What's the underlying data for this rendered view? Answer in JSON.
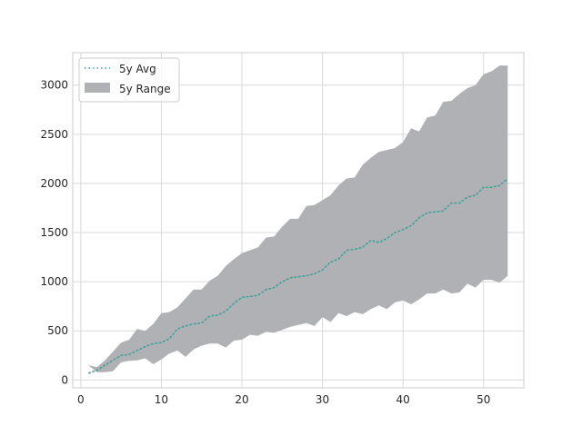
{
  "chart_data": {
    "type": "area",
    "x_ticks": [
      0,
      10,
      20,
      30,
      40,
      50
    ],
    "y_ticks": [
      0,
      500,
      1000,
      1500,
      2000,
      2500,
      3000
    ],
    "xlim": [
      -1,
      55
    ],
    "ylim": [
      -80,
      3330
    ],
    "grid": true,
    "legend_position": "top-left",
    "colors": {
      "range_fill": "#b0b1b4",
      "avg_line": "#3aa39a",
      "grid": "#d9d9d9",
      "axes": "#cccccc"
    },
    "x": [
      1,
      2,
      3,
      4,
      5,
      6,
      7,
      8,
      9,
      10,
      11,
      12,
      13,
      14,
      15,
      16,
      17,
      18,
      19,
      20,
      21,
      22,
      23,
      24,
      25,
      26,
      27,
      28,
      29,
      30,
      31,
      32,
      33,
      34,
      35,
      36,
      37,
      38,
      39,
      40,
      41,
      42,
      43,
      44,
      45,
      46,
      47,
      48,
      49,
      50,
      51,
      52,
      53
    ],
    "series": [
      {
        "name": "5y Avg",
        "kind": "line",
        "values": [
          70,
          100,
          150,
          200,
          250,
          260,
          300,
          340,
          370,
          380,
          420,
          520,
          550,
          570,
          580,
          650,
          660,
          700,
          780,
          840,
          850,
          860,
          920,
          940,
          1000,
          1040,
          1050,
          1060,
          1080,
          1120,
          1200,
          1230,
          1320,
          1330,
          1350,
          1420,
          1400,
          1440,
          1500,
          1530,
          1570,
          1650,
          1700,
          1710,
          1720,
          1800,
          1800,
          1860,
          1880,
          1960,
          1960,
          1980,
          2050
        ]
      },
      {
        "name": "5y Range",
        "kind": "band",
        "lower": [
          145,
          80,
          80,
          90,
          180,
          195,
          200,
          220,
          160,
          210,
          270,
          300,
          235,
          310,
          350,
          370,
          370,
          330,
          400,
          410,
          460,
          450,
          490,
          480,
          510,
          540,
          560,
          580,
          550,
          640,
          590,
          680,
          650,
          690,
          670,
          720,
          760,
          720,
          790,
          810,
          770,
          820,
          880,
          880,
          920,
          880,
          890,
          980,
          940,
          1020,
          1020,
          990,
          1060
        ],
        "upper": [
          150,
          130,
          200,
          290,
          380,
          410,
          520,
          500,
          570,
          680,
          690,
          740,
          830,
          920,
          920,
          1010,
          1060,
          1160,
          1230,
          1290,
          1320,
          1350,
          1450,
          1460,
          1560,
          1640,
          1640,
          1770,
          1780,
          1830,
          1880,
          1980,
          2050,
          2060,
          2190,
          2260,
          2320,
          2340,
          2360,
          2420,
          2560,
          2530,
          2670,
          2690,
          2830,
          2840,
          2910,
          2970,
          3000,
          3110,
          3140,
          3200,
          3200
        ]
      }
    ]
  }
}
